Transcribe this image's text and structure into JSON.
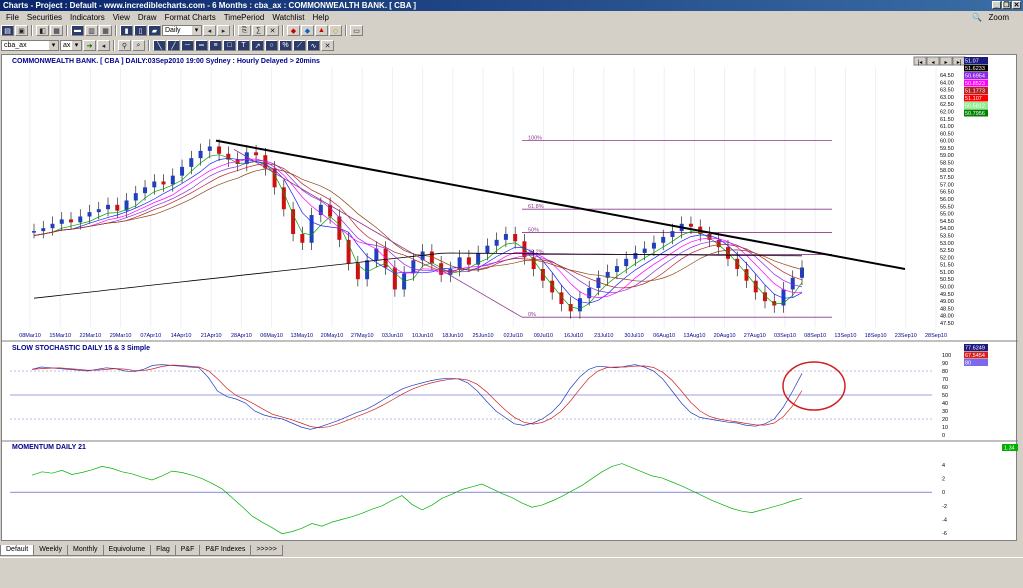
{
  "window": {
    "title": "Charts - Project : Default - www.incrediblecharts.com - 6 Months : cba_ax : COMMONWEALTH BANK. [ CBA ]",
    "controls": [
      "_",
      "❐",
      "✕"
    ]
  },
  "menu": {
    "items": [
      "File",
      "Securities",
      "Indicators",
      "View",
      "Draw",
      "Format Charts",
      "TimePeriod",
      "Watchlist",
      "Help"
    ],
    "zoom_label": "Zoom"
  },
  "toolbar": {
    "period_select": "Daily",
    "security_input": "cba_ax",
    "exchange_select": "ax"
  },
  "chart": {
    "header": "COMMONWEALTH BANK. [ CBA ] DAILY:03Sep2010 19:00 Sydney : Hourly Delayed > 20mins",
    "nav_buttons": [
      "|◂",
      "◂",
      "▸",
      "▸|"
    ],
    "price_labels": [
      "64.50",
      "64.00",
      "63.50",
      "63.00",
      "62.50",
      "62.00",
      "61.50",
      "61.00",
      "60.50",
      "60.00",
      "59.50",
      "59.00",
      "58.50",
      "58.00",
      "57.50",
      "57.00",
      "56.50",
      "56.00",
      "55.50",
      "55.00",
      "54.50",
      "54.00",
      "53.50",
      "53.00",
      "52.50",
      "52.00",
      "51.50",
      "51.00",
      "50.50",
      "50.00",
      "49.50",
      "49.00",
      "48.50",
      "48.00",
      "47.50"
    ],
    "price_tags": [
      {
        "text": "51.07",
        "color": "#1a1a80"
      },
      {
        "text": "51.6233",
        "color": "#000000"
      },
      {
        "text": "50.6954",
        "color": "#8a2be2"
      },
      {
        "text": "50.8523",
        "color": "#ff00ff"
      },
      {
        "text": "51.1773",
        "color": "#b22222"
      },
      {
        "text": "51.107",
        "color": "#ff0000"
      },
      {
        "text": "50.5812",
        "color": "#90ee90"
      },
      {
        "text": "50.7956",
        "color": "#008000"
      }
    ],
    "fib_levels": [
      {
        "label": "100%",
        "price": 60.0
      },
      {
        "label": "61.8%",
        "price": 55.3
      },
      {
        "label": "50%",
        "price": 53.7
      },
      {
        "label": "38.2%",
        "price": 52.2
      },
      {
        "label": "0%",
        "price": 47.9
      }
    ],
    "date_labels": [
      "08Mar10",
      "15Mar10",
      "22Mar10",
      "29Mar10",
      "07Apr10",
      "14Apr10",
      "21Apr10",
      "28Apr10",
      "06May10",
      "13May10",
      "20May10",
      "27May10",
      "03Jun10",
      "10Jun10",
      "18Jun10",
      "25Jun10",
      "02Jul10",
      "09Jul10",
      "16Jul10",
      "23Jul10",
      "30Jul10",
      "06Aug10",
      "13Aug10",
      "20Aug10",
      "27Aug10",
      "03Sep10",
      "08Sep10",
      "13Sep10",
      "18Sep10",
      "23Sep10",
      "28Sep10"
    ],
    "stoch": {
      "title": "SLOW STOCHASTIC DAILY 15 & 3 Simple",
      "levels": [
        "100",
        "90",
        "80",
        "70",
        "60",
        "50",
        "40",
        "30",
        "20",
        "10",
        "0"
      ],
      "tags": [
        {
          "text": "77.6249",
          "color": "#1a1a80"
        },
        {
          "text": "67.5454",
          "color": "#d02020"
        },
        {
          "text": "80",
          "color": "#7b68ee"
        }
      ]
    },
    "momentum": {
      "title": "MOMENTUM DAILY 21",
      "levels": [
        "4",
        "2",
        "0",
        "-2",
        "-4",
        "-6"
      ],
      "tag": {
        "text": "1.34",
        "color": "#00b000"
      }
    }
  },
  "tabs": [
    "Default",
    "Weekly",
    "Monthly",
    "Equivolume",
    "Flag",
    "P&F",
    "P&F Indexes",
    ">>>>>"
  ]
}
